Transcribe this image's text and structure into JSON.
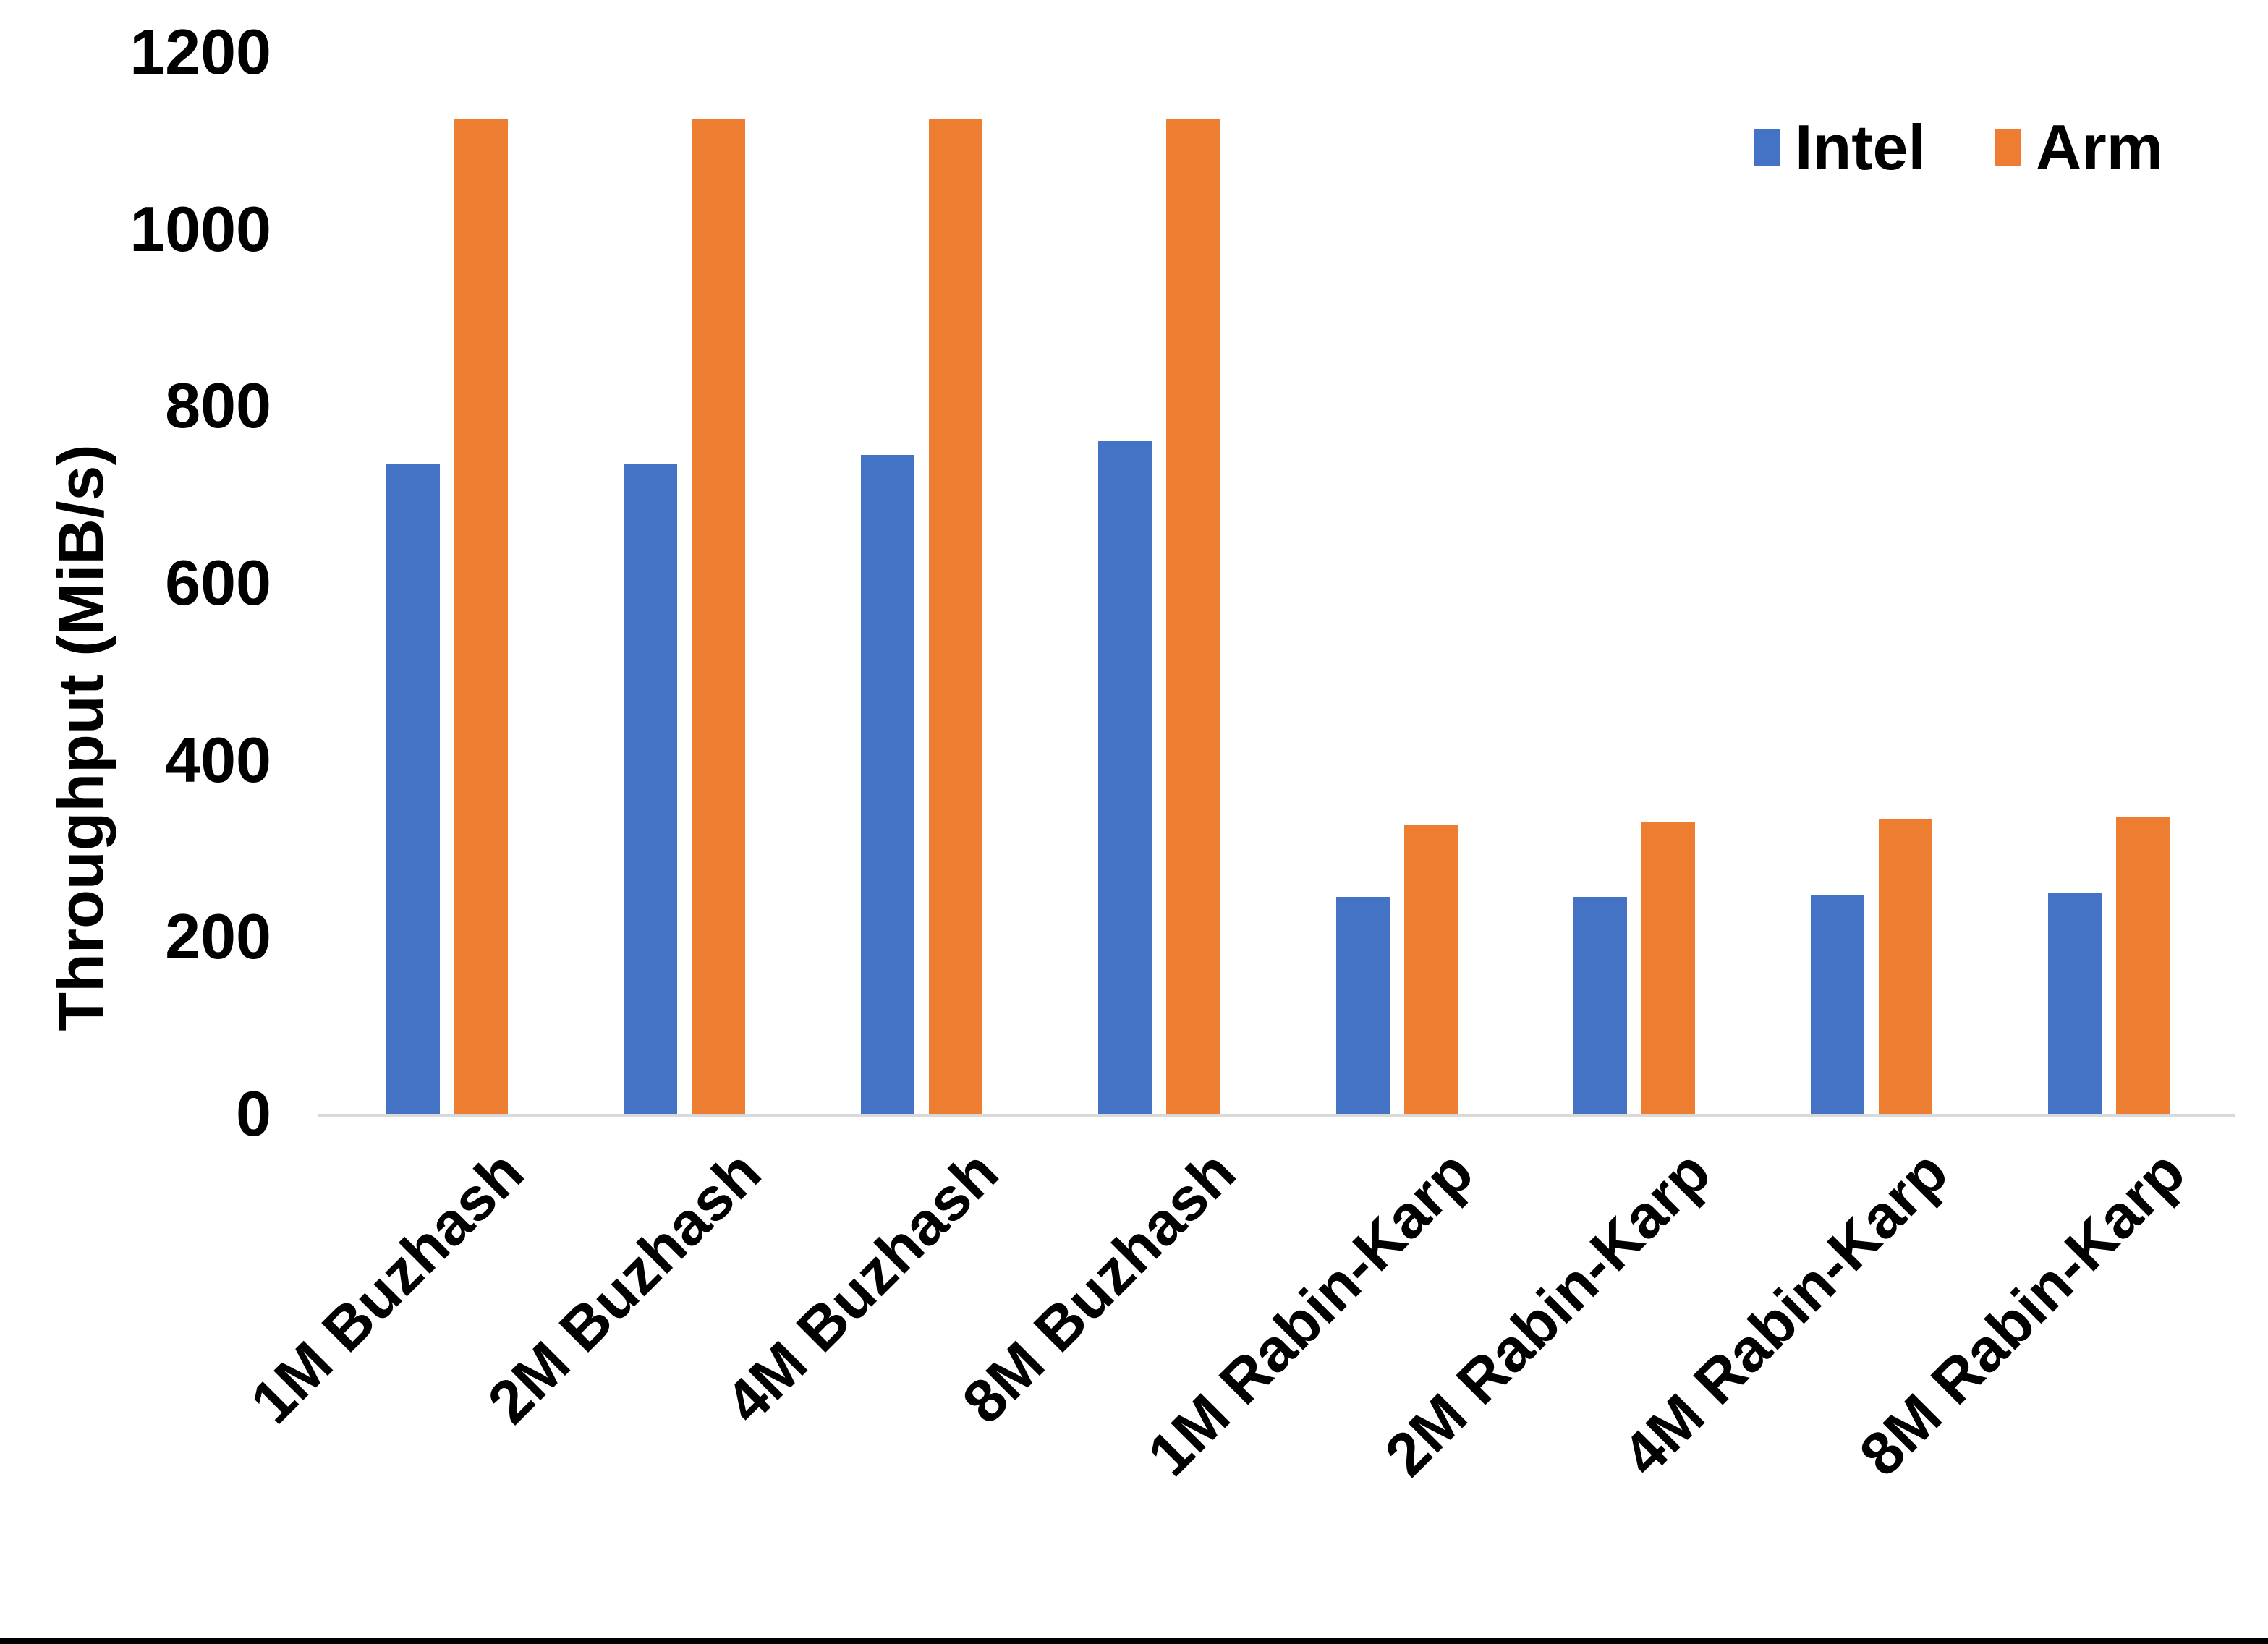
{
  "chart_data": {
    "type": "bar",
    "title": "",
    "xlabel": "",
    "ylabel": "Throughput (MiB/s)",
    "ylim": [
      0,
      1200
    ],
    "yticks": [
      0,
      200,
      400,
      600,
      800,
      1000,
      1200
    ],
    "grid": false,
    "legend_position": "top-right",
    "categories": [
      "1M Buzhash",
      "2M Buzhash",
      "4M Buzhash",
      "8M Buzhash",
      "1M Rabin-Karp",
      "2M Rabin-Karp",
      "4M Rabin-Karp",
      "8M Rabin-Karp"
    ],
    "series": [
      {
        "name": "Intel",
        "color": "#4472C4",
        "values": [
          735,
          735,
          745,
          760,
          245,
          245,
          248,
          250
        ]
      },
      {
        "name": "Arm",
        "color": "#ED7D31",
        "values": [
          1125,
          1125,
          1125,
          1125,
          327,
          330,
          333,
          335
        ]
      }
    ],
    "colors": {
      "axis_line": "#d9d9d9",
      "text": "#000000",
      "background": "#ffffff",
      "frame_bottom": "#000000"
    }
  }
}
